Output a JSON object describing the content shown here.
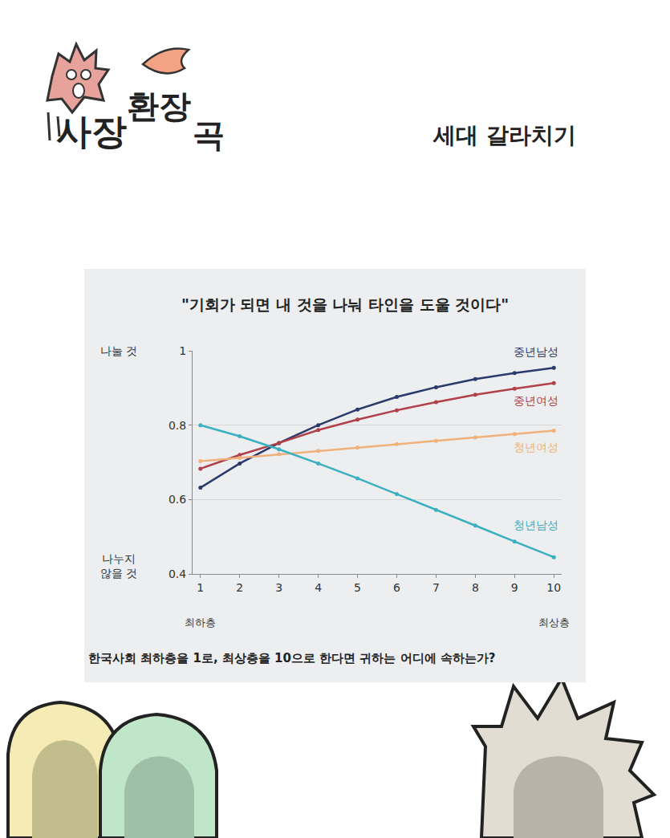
{
  "header": {
    "logo": [
      "사장",
      "환장",
      "곡"
    ],
    "title": "세대 갈라치기"
  },
  "chart_data": {
    "type": "line",
    "title": "\"기회가 되면 내 것을 나눠 타인을 도울 것이다\"",
    "x_label": "한국사회 최하층을 1로, 최상층을 10으로 한다면 귀하는 어디에 속하는가?",
    "y_end_labels": {
      "top": "나눌 것",
      "bottom": "나누지 않을 것"
    },
    "x_end_labels": {
      "left": "최하층",
      "right": "최상층"
    },
    "x": [
      1,
      2,
      3,
      4,
      5,
      6,
      7,
      8,
      9,
      10
    ],
    "xlim": [
      0.8,
      10.2
    ],
    "xticks": [
      1,
      2,
      3,
      4,
      5,
      6,
      7,
      8,
      9,
      10
    ],
    "ylim": [
      0.4,
      1
    ],
    "yticks": [
      0.4,
      0.6,
      0.8,
      1
    ],
    "grid": true,
    "marker": "circle",
    "line_style": "solid",
    "series": [
      {
        "name": "중년남성",
        "color": "#2b3a6b",
        "values": [
          0.632,
          0.697,
          0.752,
          0.8,
          0.842,
          0.876,
          0.902,
          0.924,
          0.94,
          0.954
        ]
      },
      {
        "name": "중년여성",
        "color": "#b0404a",
        "values": [
          0.683,
          0.72,
          0.752,
          0.787,
          0.815,
          0.84,
          0.862,
          0.882,
          0.898,
          0.913
        ]
      },
      {
        "name": "청년여성",
        "color": "#f0b27a",
        "values": [
          0.703,
          0.712,
          0.722,
          0.731,
          0.74,
          0.749,
          0.758,
          0.767,
          0.776,
          0.785
        ]
      },
      {
        "name": "청년남성",
        "color": "#3ab0c0",
        "values": [
          0.8,
          0.77,
          0.735,
          0.697,
          0.657,
          0.615,
          0.572,
          0.53,
          0.487,
          0.445
        ]
      }
    ]
  }
}
